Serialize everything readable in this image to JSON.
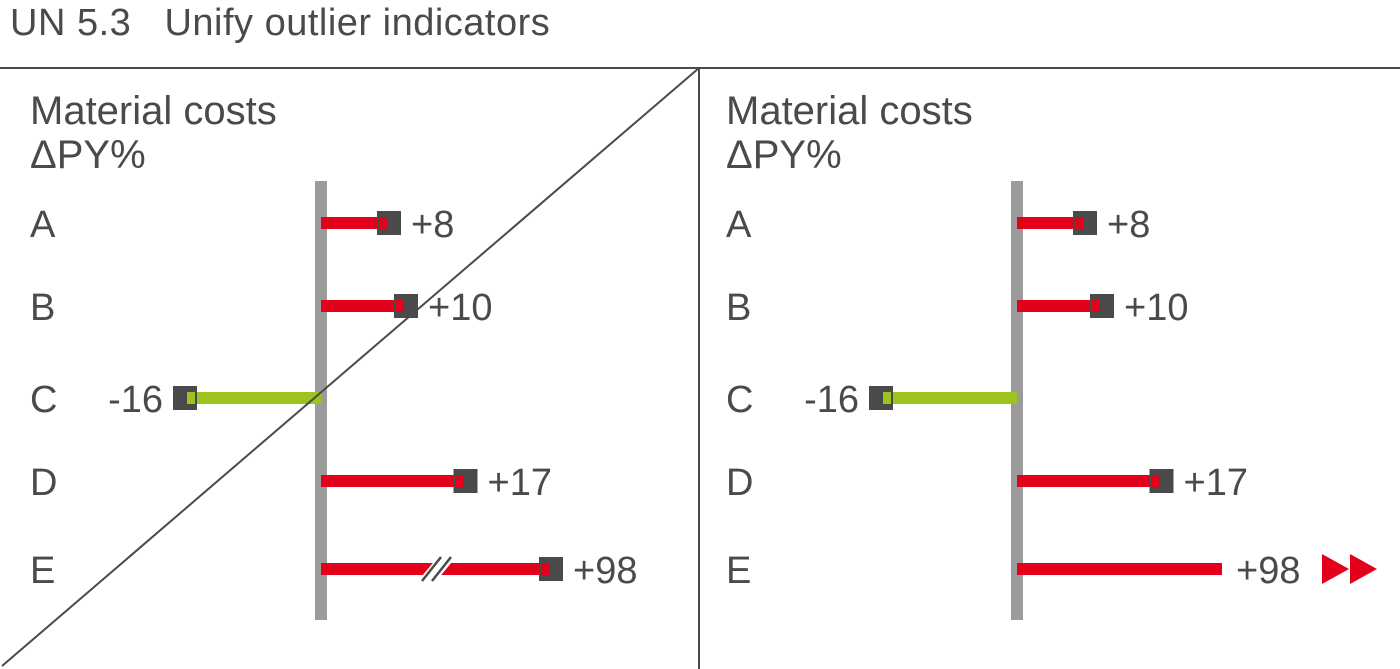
{
  "header": {
    "title": "UN 5.3   Unify outlier indicators"
  },
  "colors": {
    "positive": "#e2001a",
    "negative": "#9dc31f",
    "marker": "#4a4a4a",
    "axis": "#9b9b9b",
    "text": "#4a4a4a",
    "frame": "#4a4a4a"
  },
  "chart_data": [
    {
      "type": "bar",
      "orientation": "horizontal",
      "variant": "axis-break-crossed-out",
      "title": "Material costs",
      "subtitle": "ΔPY%",
      "categories": [
        "A",
        "B",
        "C",
        "D",
        "E"
      ],
      "values": [
        8,
        10,
        -16,
        17,
        98
      ],
      "value_labels": [
        "+8",
        "+10",
        "-16",
        "+17",
        "+98"
      ],
      "outlier_indicator": "axis-break",
      "crossed_out": true
    },
    {
      "type": "bar",
      "orientation": "horizontal",
      "variant": "outlier-arrows",
      "title": "Material costs",
      "subtitle": "ΔPY%",
      "categories": [
        "A",
        "B",
        "C",
        "D",
        "E"
      ],
      "values": [
        8,
        10,
        -16,
        17,
        98
      ],
      "value_labels": [
        "+8",
        "+10",
        "-16",
        "+17",
        "+98"
      ],
      "outlier_indicator": "double-arrow"
    }
  ]
}
